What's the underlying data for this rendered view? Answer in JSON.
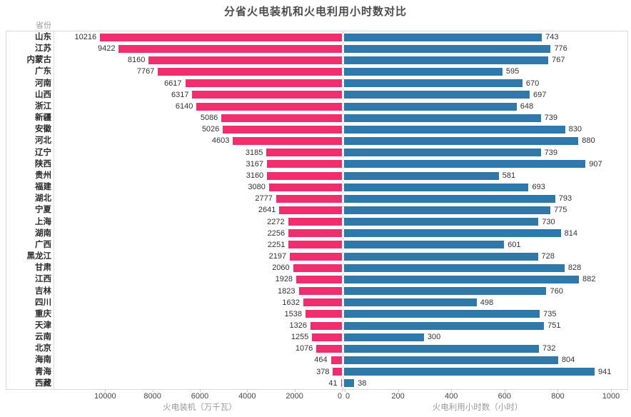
{
  "title": "分省火电装机和火电利用小时数对比",
  "column_header": "省份",
  "colors": {
    "capacity_bar": "#f02d6d",
    "hours_bar": "#2e79a9",
    "plot_border": "#d9d9d9",
    "title_text": "#4c4c4c",
    "axis_title_text": "#9a9a9a",
    "tick_text": "#454545",
    "value_text": "#333333"
  },
  "chart_data": {
    "type": "bar",
    "subtype": "diverging-horizontal-tornado",
    "title": "分省火电装机和火电利用小时数对比",
    "row_header": "省份",
    "grid": "center zero dashed line only",
    "legend_position": "none",
    "categories": [
      "山东",
      "江苏",
      "内蒙古",
      "广东",
      "河南",
      "山西",
      "浙江",
      "新疆",
      "安徽",
      "河北",
      "辽宁",
      "陕西",
      "贵州",
      "福建",
      "湖北",
      "宁夏",
      "上海",
      "湖南",
      "广西",
      "黑龙江",
      "甘肃",
      "江西",
      "吉林",
      "四川",
      "重庆",
      "天津",
      "云南",
      "北京",
      "海南",
      "青海",
      "西藏"
    ],
    "series": [
      {
        "name": "火电装机",
        "axis_label": "火电装机（万千瓦）",
        "unit": "万千瓦",
        "color": "#f02d6d",
        "direction": "right-to-left",
        "ticks": [
          10000,
          8000,
          6000,
          4000,
          2000,
          0
        ],
        "axis_range": [
          0,
          12030
        ],
        "values": [
          10216,
          9422,
          8160,
          7767,
          6617,
          6317,
          6140,
          5086,
          5026,
          4603,
          3185,
          3167,
          3160,
          3080,
          2777,
          2641,
          2272,
          2256,
          2251,
          2197,
          2060,
          1928,
          1823,
          1632,
          1538,
          1326,
          1255,
          1076,
          464,
          378,
          41
        ]
      },
      {
        "name": "火电利用小时数",
        "axis_label": "火电利用小时数（小时）",
        "unit": "小时",
        "color": "#2e79a9",
        "direction": "left-to-right",
        "ticks": [
          0,
          200,
          400,
          600,
          800,
          1000
        ],
        "axis_range": [
          0,
          1065
        ],
        "values": [
          743,
          776,
          767,
          595,
          670,
          697,
          648,
          739,
          830,
          880,
          739,
          907,
          581,
          693,
          793,
          775,
          730,
          814,
          601,
          728,
          828,
          882,
          760,
          498,
          735,
          751,
          300,
          732,
          804,
          941,
          38
        ]
      }
    ]
  }
}
